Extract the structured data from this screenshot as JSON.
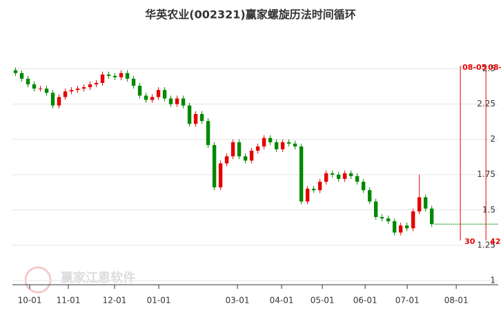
{
  "chart_data": {
    "type": "candlestick",
    "title": "华英农业(002321)赢家螺旋历法时间循环",
    "open": [
      2.49,
      2.47,
      2.43,
      2.39,
      2.36,
      2.36,
      2.33,
      2.24,
      2.3,
      2.34,
      2.35,
      2.36,
      2.37,
      2.39,
      2.4,
      2.46,
      2.45,
      2.44,
      2.47,
      2.43,
      2.38,
      2.31,
      2.28,
      2.3,
      2.35,
      2.29,
      2.25,
      2.29,
      2.24,
      2.11,
      2.18,
      2.13,
      1.96,
      1.66,
      1.83,
      1.88,
      1.98,
      1.88,
      1.85,
      1.92,
      1.95,
      2.01,
      1.98,
      1.93,
      1.98,
      1.97,
      1.95,
      1.56,
      1.65,
      1.64,
      1.7,
      1.76,
      1.75,
      1.72,
      1.76,
      1.74,
      1.7,
      1.64,
      1.56,
      1.45,
      1.44,
      1.42,
      1.34,
      1.39,
      1.37,
      1.49,
      1.59,
      1.51
    ],
    "high": [
      2.51,
      2.49,
      2.45,
      2.41,
      2.38,
      2.38,
      2.35,
      2.32,
      2.36,
      2.37,
      2.38,
      2.39,
      2.41,
      2.42,
      2.48,
      2.48,
      2.47,
      2.49,
      2.49,
      2.45,
      2.4,
      2.33,
      2.32,
      2.37,
      2.37,
      2.31,
      2.31,
      2.31,
      2.26,
      2.2,
      2.2,
      2.15,
      1.98,
      1.85,
      1.9,
      2.0,
      2.0,
      1.9,
      1.94,
      1.97,
      2.03,
      2.03,
      2.0,
      2.0,
      2.0,
      1.99,
      1.97,
      1.67,
      1.67,
      1.72,
      1.78,
      1.78,
      1.77,
      1.78,
      1.78,
      1.76,
      1.72,
      1.66,
      1.58,
      1.47,
      1.46,
      1.44,
      1.41,
      1.41,
      1.51,
      1.75,
      1.61,
      1.53
    ],
    "low": [
      2.45,
      2.41,
      2.37,
      2.34,
      2.34,
      2.31,
      2.22,
      2.22,
      2.28,
      2.32,
      2.33,
      2.34,
      2.35,
      2.37,
      2.38,
      2.43,
      2.42,
      2.42,
      2.41,
      2.36,
      2.29,
      2.26,
      2.26,
      2.28,
      2.27,
      2.23,
      2.23,
      2.22,
      2.09,
      2.09,
      2.11,
      1.94,
      1.64,
      1.64,
      1.81,
      1.86,
      1.86,
      1.83,
      1.83,
      1.9,
      1.93,
      1.96,
      1.91,
      1.91,
      1.95,
      1.93,
      1.54,
      1.54,
      1.62,
      1.62,
      1.68,
      1.73,
      1.7,
      1.7,
      1.72,
      1.68,
      1.62,
      1.54,
      1.43,
      1.42,
      1.4,
      1.32,
      1.32,
      1.35,
      1.35,
      1.47,
      1.49,
      1.38
    ],
    "close": [
      2.47,
      2.43,
      2.39,
      2.36,
      2.36,
      2.33,
      2.24,
      2.3,
      2.34,
      2.35,
      2.36,
      2.37,
      2.39,
      2.4,
      2.46,
      2.45,
      2.44,
      2.47,
      2.43,
      2.38,
      2.31,
      2.28,
      2.3,
      2.35,
      2.29,
      2.25,
      2.29,
      2.24,
      2.11,
      2.18,
      2.13,
      1.96,
      1.66,
      1.83,
      1.88,
      1.98,
      1.88,
      1.85,
      1.92,
      1.95,
      2.01,
      1.98,
      1.93,
      1.98,
      1.97,
      1.95,
      1.56,
      1.65,
      1.64,
      1.7,
      1.76,
      1.75,
      1.72,
      1.76,
      1.74,
      1.7,
      1.64,
      1.56,
      1.45,
      1.44,
      1.42,
      1.34,
      1.39,
      1.37,
      1.49,
      1.59,
      1.51,
      1.4
    ],
    "up_color": "#e60000",
    "down_color": "#008a00",
    "xlim": [
      -0.5,
      77.7
    ],
    "xticks": [
      {
        "value": 2.28,
        "label": "10-01"
      },
      {
        "value": 8.5,
        "label": "11-01"
      },
      {
        "value": 15.94,
        "label": "12-01"
      },
      {
        "value": 23.06,
        "label": "01-01"
      },
      {
        "value": 35.72,
        "label": "03-01"
      },
      {
        "value": 42.83,
        "label": "04-01"
      },
      {
        "value": 49.39,
        "label": "05-01"
      },
      {
        "value": 56.28,
        "label": "06-01"
      },
      {
        "value": 63.06,
        "label": "07-01"
      },
      {
        "value": 70.94,
        "label": "08-01"
      }
    ],
    "ylim": [
      0.97,
      2.645
    ],
    "yticks": [
      1,
      1.25,
      1.5,
      1.75,
      2,
      2.25,
      2.5
    ],
    "grid": true,
    "cycle_lines": [
      {
        "x": 71.6,
        "top_label": "08-05",
        "bottom_label": "30"
      },
      {
        "x": 75.72,
        "top_label": "08-",
        "bottom_label": "42"
      }
    ],
    "cycle_color": "#e60000",
    "watermark": "赢家江恩软件"
  }
}
